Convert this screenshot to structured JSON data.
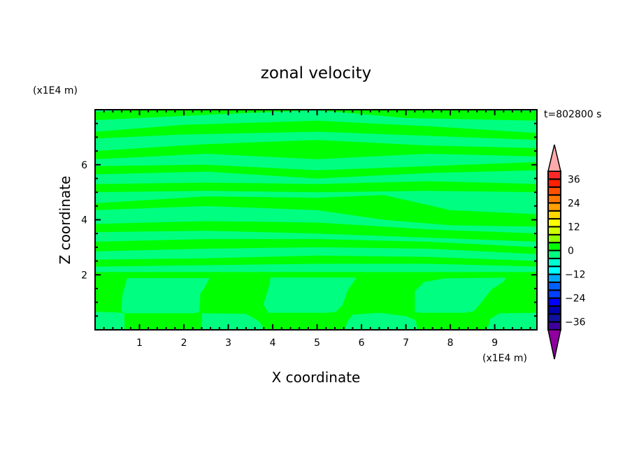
{
  "chart_data": {
    "type": "heatmap",
    "subtype": "filled-contour",
    "title": "zonal velocity",
    "xlabel": "X coordinate",
    "ylabel": "Z coordinate",
    "x_unit_label": "(x1E4 m)",
    "y_unit_label": "(x1E4 m)",
    "time_label": "t=802800 s",
    "xlim": [
      0,
      9.95
    ],
    "ylim": [
      0,
      8
    ],
    "x_ticks": [
      1,
      2,
      3,
      4,
      5,
      6,
      7,
      8,
      9
    ],
    "y_ticks": [
      2,
      4,
      6
    ],
    "x_minor_step": 0.2,
    "y_minor_step": 0.5,
    "colorbar": {
      "levels": [
        -40,
        -36,
        -32,
        -28,
        -24,
        -20,
        -16,
        -12,
        -8,
        -4,
        0,
        4,
        8,
        12,
        16,
        20,
        24,
        28,
        32,
        36,
        40
      ],
      "tick_labels": [
        "36",
        "24",
        "12",
        "0",
        "−12",
        "−24",
        "−36"
      ],
      "tick_values": [
        36,
        24,
        12,
        0,
        -12,
        -24,
        -36
      ],
      "colors_low_to_high": [
        "#4000a0",
        "#1010a0",
        "#0000b0",
        "#0000ff",
        "#0040ff",
        "#0060ff",
        "#00a8ff",
        "#00ffff",
        "#00ffd0",
        "#00ff80",
        "#00ff00",
        "#90ff00",
        "#d0ff00",
        "#ffff00",
        "#ffd800",
        "#ffa000",
        "#ff7800",
        "#ff5000",
        "#ff2000",
        "#ff2828"
      ],
      "under_color": "#9000a0",
      "over_color": "#ffaaaa"
    },
    "field": {
      "background_level": [
        -4,
        0
      ],
      "background_color": "#00ff80",
      "positive_color": "#00ff00",
      "lower_positive_layer": {
        "level": [
          0,
          4
        ],
        "z_range": [
          0,
          2.1
        ]
      },
      "positive_stripes": [
        [
          [
            0,
            7.62,
            7.92
          ],
          [
            1,
            7.7,
            8
          ],
          [
            3,
            7.85,
            8
          ],
          [
            5,
            7.98,
            8
          ]
        ],
        [
          [
            5,
            7.98,
            8
          ],
          [
            7,
            7.7,
            8
          ],
          [
            10,
            7.6,
            7.95
          ]
        ],
        [
          [
            0,
            6.95,
            7.2
          ],
          [
            2,
            7.1,
            7.45
          ],
          [
            5,
            7.2,
            7.6
          ],
          [
            7.5,
            7.05,
            7.4
          ],
          [
            10,
            6.9,
            7.15
          ]
        ],
        [
          [
            0,
            6.2,
            6.5
          ],
          [
            2.5,
            6.4,
            6.75
          ],
          [
            5,
            6.2,
            6.9
          ],
          [
            7.5,
            6.4,
            6.7
          ],
          [
            10,
            6.3,
            6.6
          ]
        ],
        [
          [
            0,
            5.65,
            5.95
          ],
          [
            2.5,
            5.75,
            6.0
          ],
          [
            5,
            5.5,
            5.8
          ],
          [
            7.5,
            5.7,
            5.95
          ],
          [
            10,
            5.8,
            6.1
          ]
        ],
        [
          [
            0,
            5.0,
            5.3
          ],
          [
            2.5,
            5.05,
            5.35
          ],
          [
            5,
            5.0,
            5.3
          ],
          [
            7.5,
            5.05,
            5.4
          ],
          [
            10,
            5.0,
            5.3
          ]
        ],
        [
          [
            0,
            4.35,
            4.6
          ],
          [
            2.5,
            4.5,
            4.85
          ],
          [
            5,
            4.35,
            4.8
          ],
          [
            6.5,
            4.0,
            4.9
          ],
          [
            8,
            3.8,
            4.35
          ],
          [
            10,
            3.75,
            4.2
          ]
        ],
        [
          [
            0,
            3.55,
            3.85
          ],
          [
            2.5,
            3.6,
            3.95
          ],
          [
            5,
            3.5,
            3.9
          ],
          [
            7.5,
            3.35,
            3.65
          ],
          [
            10,
            3.2,
            3.5
          ]
        ],
        [
          [
            0,
            2.85,
            3.2
          ],
          [
            2.5,
            2.95,
            3.3
          ],
          [
            5,
            3.0,
            3.3
          ],
          [
            7.5,
            2.95,
            3.2
          ],
          [
            10,
            2.75,
            3.0
          ]
        ],
        [
          [
            0,
            2.3,
            2.55
          ],
          [
            2.5,
            2.35,
            2.6
          ],
          [
            5,
            2.4,
            2.7
          ],
          [
            7.5,
            2.4,
            2.65
          ],
          [
            10,
            2.3,
            2.5
          ]
        ]
      ],
      "negative_regions": [
        [
          [
            0.72,
            1.88
          ],
          [
            2.58,
            1.88
          ],
          [
            2.45,
            1.5
          ],
          [
            2.37,
            1.32
          ],
          [
            2.35,
            0.64
          ],
          [
            2.2,
            0.6
          ],
          [
            0.69,
            0.6
          ],
          [
            0.58,
            0.7
          ],
          [
            0.62,
            1.3
          ]
        ],
        [
          [
            0,
            0
          ],
          [
            0.66,
            0
          ],
          [
            0.66,
            0.62
          ],
          [
            0,
            0.66
          ]
        ],
        [
          [
            3.95,
            1.9
          ],
          [
            5.89,
            1.9
          ],
          [
            5.7,
            1.47
          ],
          [
            5.57,
            0.9
          ],
          [
            5.42,
            0.65
          ],
          [
            5.2,
            0.62
          ],
          [
            3.9,
            0.62
          ],
          [
            3.79,
            0.92
          ],
          [
            3.9,
            1.5
          ]
        ],
        [
          [
            2.4,
            0
          ],
          [
            3.81,
            0
          ],
          [
            3.7,
            0.3
          ],
          [
            3.4,
            0.58
          ],
          [
            2.4,
            0.6
          ]
        ],
        [
          [
            7.2,
            1.4
          ],
          [
            7.41,
            1.74
          ],
          [
            7.88,
            1.87
          ],
          [
            9.25,
            1.9
          ],
          [
            9.2,
            1.75
          ],
          [
            8.93,
            1.47
          ],
          [
            8.62,
            0.84
          ],
          [
            8.52,
            0.67
          ],
          [
            8.3,
            0.62
          ],
          [
            7.3,
            0.62
          ],
          [
            7.2,
            0.66
          ]
        ],
        [
          [
            5.62,
            0
          ],
          [
            7.26,
            0
          ],
          [
            7.22,
            0.35
          ],
          [
            7.0,
            0.5
          ],
          [
            6.4,
            0.62
          ],
          [
            5.8,
            0.55
          ],
          [
            5.68,
            0.3
          ]
        ],
        [
          [
            8.83,
            0
          ],
          [
            10,
            0
          ],
          [
            10,
            0.62
          ],
          [
            9.1,
            0.6
          ],
          [
            8.9,
            0.4
          ]
        ]
      ]
    }
  }
}
